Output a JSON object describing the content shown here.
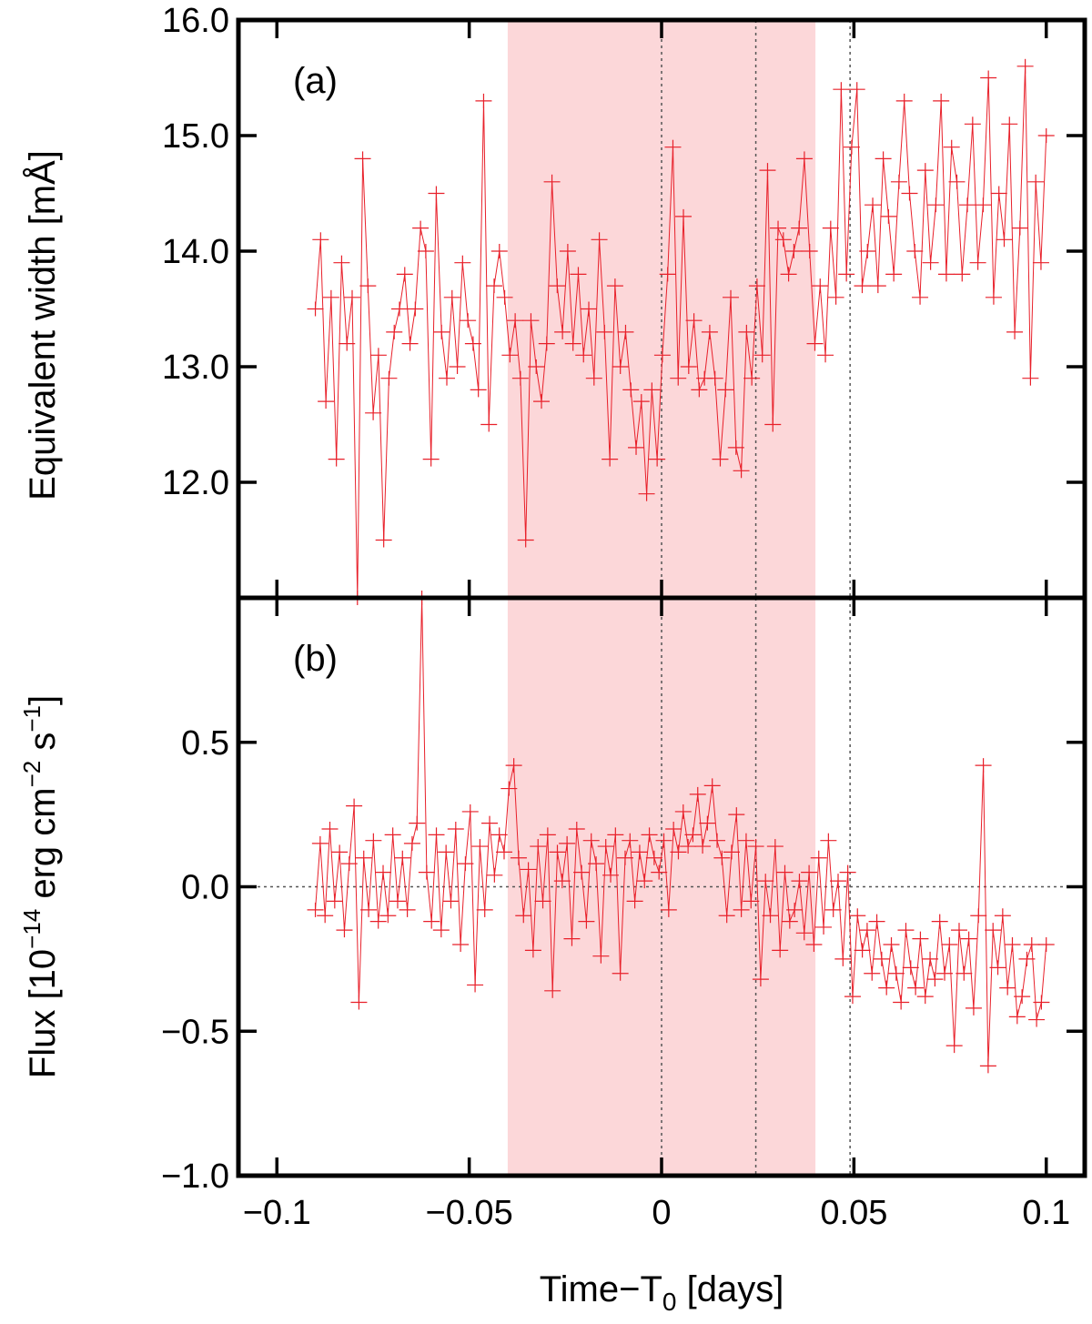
{
  "chart_data": [
    {
      "type": "line",
      "panel_label": "(a)",
      "title": "",
      "xlabel": "",
      "ylabel": "Equivalent width [mÅ]",
      "xlim": [
        -0.11,
        0.11
      ],
      "ylim": [
        11.0,
        16.0
      ],
      "yticks": [
        "12.0",
        "13.0",
        "14.0",
        "15.0",
        "16.0"
      ],
      "ytick_values": [
        12.0,
        13.0,
        14.0,
        15.0,
        16.0
      ],
      "grid": false,
      "shaded_region": {
        "x": [
          -0.04,
          0.04
        ],
        "color": "#fcd7d9"
      },
      "vertical_lines": [
        0.0,
        0.0245,
        0.049
      ],
      "series_color": "#e8202a",
      "x_start": -0.09,
      "x_end": 0.1,
      "y": [
        13.5,
        14.1,
        12.7,
        13.6,
        12.2,
        13.9,
        13.2,
        13.6,
        11.0,
        14.8,
        13.7,
        12.6,
        13.1,
        11.5,
        12.9,
        13.3,
        13.5,
        13.8,
        13.2,
        13.5,
        14.2,
        14.0,
        12.2,
        14.5,
        13.3,
        12.9,
        13.6,
        13.0,
        13.9,
        13.4,
        13.2,
        12.8,
        15.3,
        12.5,
        13.7,
        14.0,
        13.6,
        13.1,
        13.4,
        12.9,
        11.5,
        13.4,
        13.0,
        12.7,
        13.2,
        14.6,
        13.7,
        13.3,
        14.0,
        13.2,
        13.8,
        13.1,
        13.5,
        12.9,
        14.1,
        13.3,
        12.2,
        13.7,
        13.0,
        13.3,
        12.8,
        12.3,
        12.7,
        11.9,
        12.8,
        12.2,
        13.1,
        13.8,
        14.9,
        12.9,
        14.3,
        13.0,
        13.4,
        12.8,
        12.9,
        13.3,
        12.9,
        12.2,
        12.8,
        13.6,
        12.3,
        12.1,
        13.3,
        12.9,
        13.7,
        13.1,
        14.7,
        12.5,
        14.2,
        14.1,
        13.8,
        14.0,
        14.2,
        14.8,
        14.0,
        13.2,
        13.7,
        13.1,
        14.2,
        13.6,
        15.4,
        13.8,
        14.9,
        15.4,
        13.7,
        14.0,
        14.4,
        13.7,
        14.8,
        14.3,
        13.8,
        14.6,
        15.3,
        14.5,
        14.0,
        13.6,
        14.7,
        13.9,
        14.4,
        15.3,
        13.8,
        14.9,
        14.6,
        13.8,
        14.4,
        15.1,
        13.9,
        14.4,
        15.5,
        13.6,
        14.5,
        14.1,
        15.1,
        13.3,
        14.2,
        15.6,
        12.9,
        14.6,
        13.9,
        15.0
      ]
    },
    {
      "type": "line",
      "panel_label": "(b)",
      "title": "",
      "xlabel": "Time−T0 [days]",
      "xlabel_main": "Time−T",
      "xlabel_sub": "0",
      "xlabel_tail": " [days]",
      "ylabel": "Flux [10−14 erg cm−2 s−1]",
      "ylabel_parts": {
        "a": "Flux [10",
        "b": "−14",
        "c": " erg cm",
        "d": "−2",
        "e": " s",
        "f": "−1",
        "g": "]"
      },
      "xlim": [
        -0.11,
        0.11
      ],
      "ylim": [
        -1.0,
        1.0
      ],
      "xticks": [
        "−0.1",
        "−0.05",
        "0",
        "0.05",
        "0.1"
      ],
      "xtick_values": [
        -0.1,
        -0.05,
        0.0,
        0.05,
        0.1
      ],
      "yticks": [
        "−1.0",
        "−0.5",
        "0.0",
        "0.5"
      ],
      "ytick_values": [
        -1.0,
        -0.5,
        0.0,
        0.5
      ],
      "grid": false,
      "shaded_region": {
        "x": [
          -0.04,
          0.04
        ],
        "color": "#fcd7d9"
      },
      "vertical_lines": [
        0.0,
        0.0245,
        0.049
      ],
      "horizontal_lines": [
        0.0
      ],
      "series_color": "#e8202a",
      "x_start": -0.09,
      "x_end": 0.1,
      "y": [
        -0.08,
        0.15,
        -0.1,
        0.2,
        -0.05,
        0.12,
        -0.15,
        0.08,
        0.28,
        -0.4,
        0.1,
        -0.08,
        0.16,
        -0.12,
        0.05,
        -0.1,
        0.18,
        -0.05,
        0.1,
        -0.08,
        0.15,
        0.22,
        1.0,
        0.05,
        -0.12,
        0.18,
        -0.15,
        0.12,
        -0.05,
        0.2,
        -0.2,
        0.08,
        0.26,
        -0.34,
        0.14,
        -0.08,
        0.22,
        0.04,
        0.18,
        0.12,
        0.34,
        0.42,
        0.1,
        -0.1,
        0.06,
        -0.22,
        0.14,
        -0.05,
        0.18,
        -0.36,
        0.12,
        0.02,
        0.15,
        -0.18,
        0.2,
        0.05,
        -0.12,
        0.16,
        0.08,
        -0.24,
        0.14,
        0.04,
        0.18,
        -0.3,
        0.1,
        0.16,
        -0.05,
        0.12,
        0.02,
        0.18,
        0.1,
        0.05,
        0.16,
        -0.08,
        0.2,
        0.12,
        0.26,
        0.14,
        0.18,
        0.32,
        0.14,
        0.22,
        0.35,
        0.16,
        0.1,
        -0.1,
        0.12,
        0.25,
        -0.08,
        0.16,
        -0.05,
        0.14,
        -0.32,
        0.02,
        -0.1,
        0.14,
        -0.22,
        0.05,
        -0.12,
        -0.08,
        0.02,
        -0.16,
        0.05,
        -0.2,
        0.1,
        -0.14,
        0.16,
        -0.08,
        0.02,
        -0.25,
        0.05,
        -0.38,
        -0.1,
        -0.22,
        -0.15,
        -0.3,
        -0.12,
        -0.25,
        -0.35,
        -0.2,
        -0.3,
        -0.4,
        -0.15,
        -0.28,
        -0.35,
        -0.18,
        -0.38,
        -0.25,
        -0.32,
        -0.12,
        -0.3,
        -0.2,
        -0.55,
        -0.15,
        -0.3,
        -0.18,
        -0.42,
        -0.1,
        0.42,
        -0.62,
        -0.15,
        -0.28,
        -0.1,
        -0.35,
        -0.2,
        -0.45,
        -0.38,
        -0.25,
        -0.2,
        -0.46,
        -0.4,
        -0.2
      ]
    }
  ]
}
